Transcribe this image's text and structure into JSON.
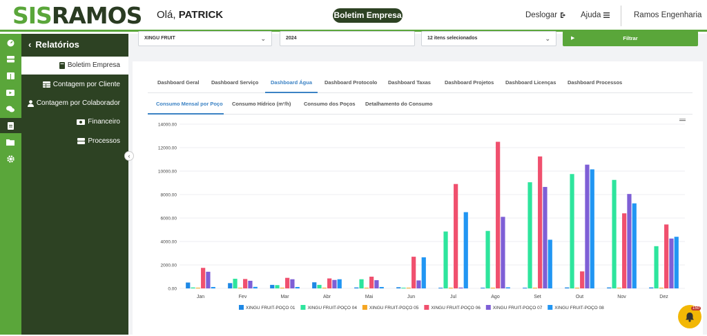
{
  "header": {
    "logo_part1": "SIS",
    "logo_part2": "RAMOS",
    "greeting_prefix": "Olá,",
    "greeting_name": "PATRICK",
    "center_pill": "Boletim Empresa",
    "logout": "Deslogar",
    "help": "Ajuda",
    "company": "Ramos Engenharia"
  },
  "sidebar": {
    "title": "Relatórios",
    "items": [
      {
        "label": "Boletim Empresa",
        "icon": "book-icon",
        "active": true
      },
      {
        "label": "Contagem por Cliente",
        "icon": "table-icon"
      },
      {
        "label": "Contagem por Colaborador",
        "icon": "user-icon"
      },
      {
        "label": "Financeiro",
        "icon": "money-icon"
      },
      {
        "label": "Processos",
        "icon": "server-icon"
      }
    ]
  },
  "filters": {
    "client": "XINGU FRUIT",
    "year": "2024",
    "items": "12 itens selecionados",
    "button": "Filtrar"
  },
  "tabs": [
    "Dashboard Geral",
    "Dashboard Serviço",
    "Dashboard Água",
    "Dashboard Protocolo",
    "Dashboard Taxas",
    "Dashboard Projetos",
    "Dashboard Licenças",
    "Dashboard Processos"
  ],
  "subtabs": [
    "Consumo Mensal por Poço",
    "Consumo Hídrico (m³/h)",
    "Consumo dos Poços",
    "Detalhamento do Consumo"
  ],
  "notifications": {
    "count": "150"
  },
  "colors": {
    "green": "#5aa63a",
    "dark": "#2d4223",
    "blue": "#3b82c4"
  },
  "chart_data": {
    "type": "bar",
    "title": "",
    "xlabel": "",
    "ylabel": "",
    "ylim": [
      0,
      14000
    ],
    "yticks": [
      "0.00",
      "2000.00",
      "4000.00",
      "6000.00",
      "8000.00",
      "10000.00",
      "12000.00",
      "14000.00"
    ],
    "categories": [
      "Jan",
      "Fev",
      "Mar",
      "Abr",
      "Mai",
      "Jun",
      "Jul",
      "Ago",
      "Set",
      "Out",
      "Nov",
      "Dez"
    ],
    "legend": "bottom",
    "series": [
      {
        "name": "XINGU FRUIT-POÇO 01",
        "color": "#1e88e5",
        "values": [
          500,
          450,
          300,
          520,
          80,
          100,
          60,
          60,
          60,
          80,
          80,
          80
        ]
      },
      {
        "name": "XINGU FRUIT-POÇO 04",
        "color": "#2ee59d",
        "values": [
          80,
          820,
          280,
          300,
          780,
          60,
          4850,
          4900,
          9050,
          9750,
          9250,
          3600
        ]
      },
      {
        "name": "XINGU FRUIT-POÇO 05",
        "color": "#f5a623",
        "values": [
          60,
          60,
          60,
          60,
          60,
          60,
          60,
          60,
          60,
          60,
          60,
          60
        ]
      },
      {
        "name": "XINGU FRUIT-POÇO 06",
        "color": "#f0506e",
        "values": [
          1750,
          800,
          900,
          850,
          1000,
          2700,
          8900,
          12500,
          11250,
          1450,
          6400,
          5450
        ]
      },
      {
        "name": "XINGU FRUIT-POÇO 07",
        "color": "#7e5fd6",
        "values": [
          1420,
          650,
          780,
          720,
          700,
          680,
          70,
          6100,
          8650,
          10550,
          8050,
          4250
        ]
      },
      {
        "name": "XINGU FRUIT-POÇO 08",
        "color": "#2196f3",
        "values": [
          120,
          130,
          120,
          780,
          120,
          2650,
          6500,
          90,
          4150,
          10150,
          7250,
          4400
        ]
      }
    ]
  }
}
